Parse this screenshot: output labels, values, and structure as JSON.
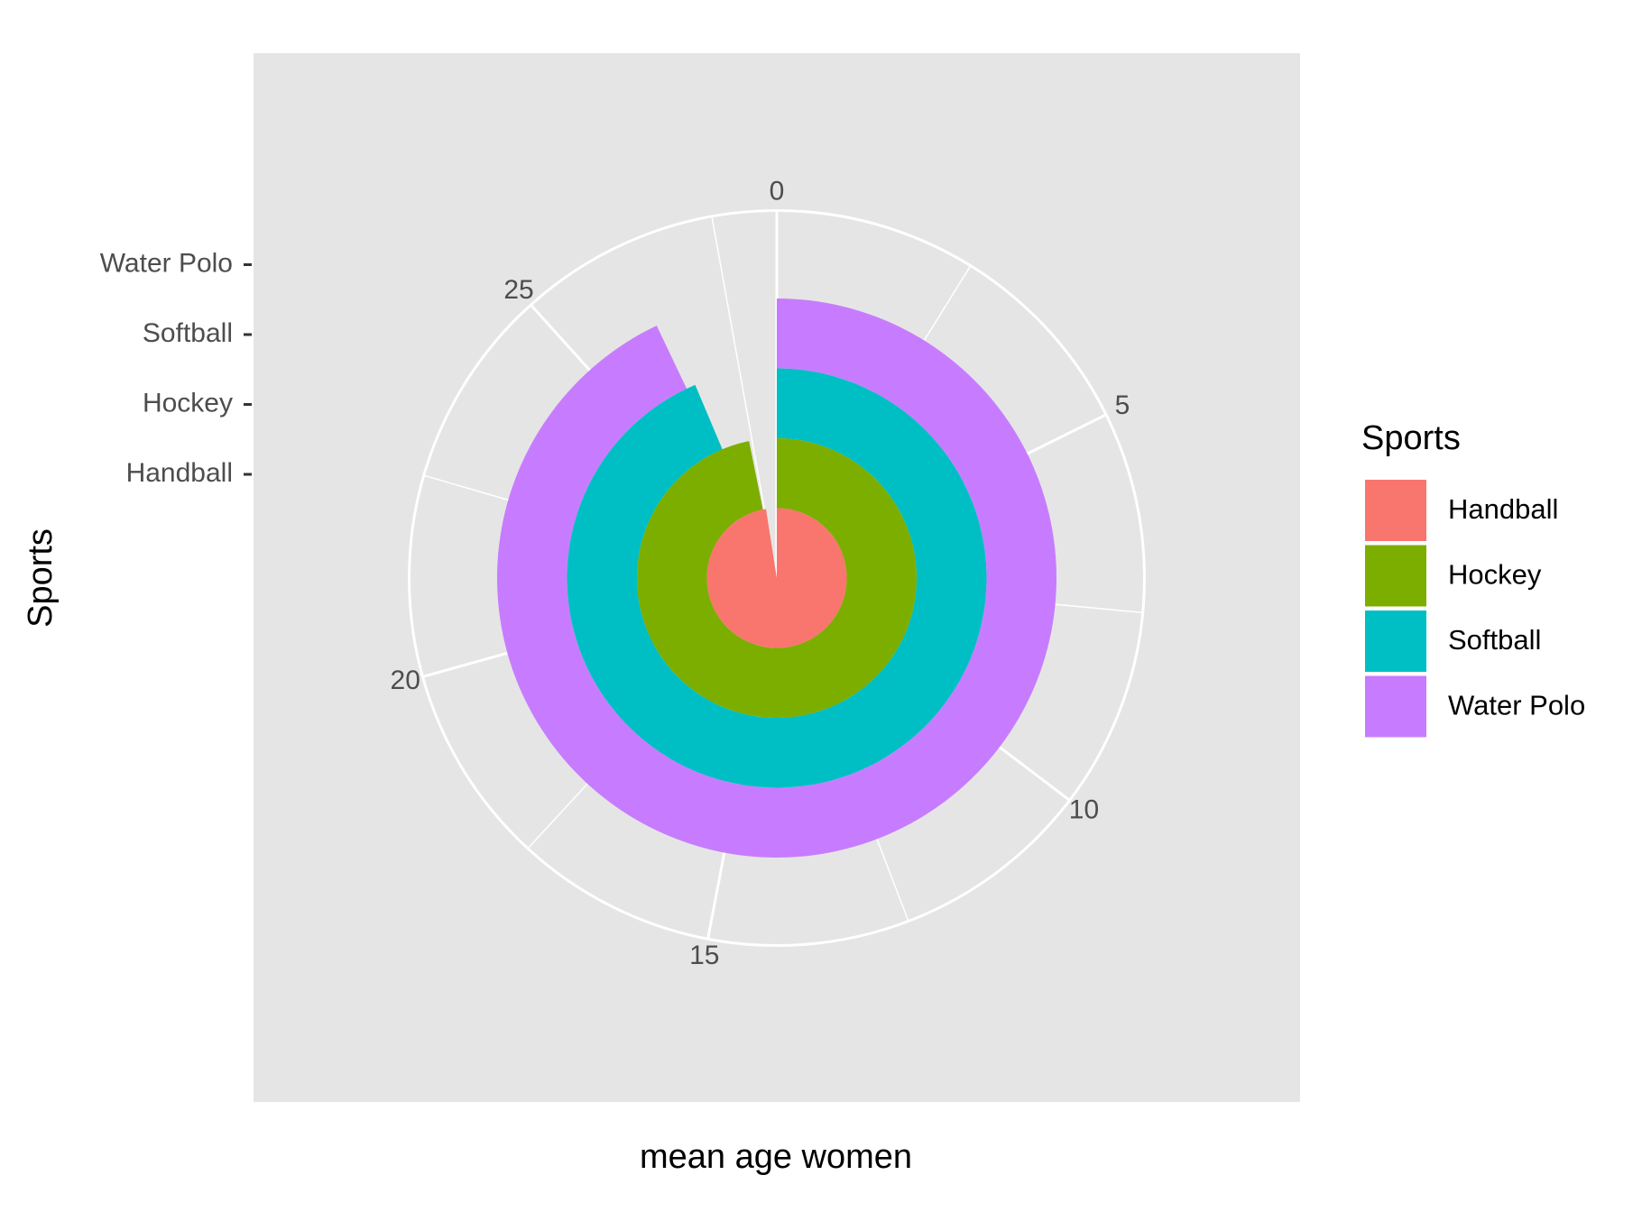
{
  "chart_data": {
    "type": "bar",
    "coord": "polar",
    "theta_variable": "mean age women",
    "radial_variable": "Sports",
    "xlabel": "mean age women",
    "ylabel": "Sports",
    "theta_range": [
      0,
      28.3
    ],
    "theta_ticks": [
      "0",
      "5",
      "10",
      "15",
      "20",
      "25"
    ],
    "categories": [
      "Handball",
      "Hockey",
      "Softball",
      "Water Polo"
    ],
    "values": [
      27.6,
      27.4,
      26.5,
      26.3
    ],
    "colors": [
      "#F8766D",
      "#7CAE00",
      "#00BFC4",
      "#C77CFF"
    ],
    "panel_background": "#E5E5E5",
    "grid": true,
    "legend": {
      "title": "Sports",
      "position": "right",
      "items": [
        "Handball",
        "Hockey",
        "Softball",
        "Water Polo"
      ]
    }
  }
}
